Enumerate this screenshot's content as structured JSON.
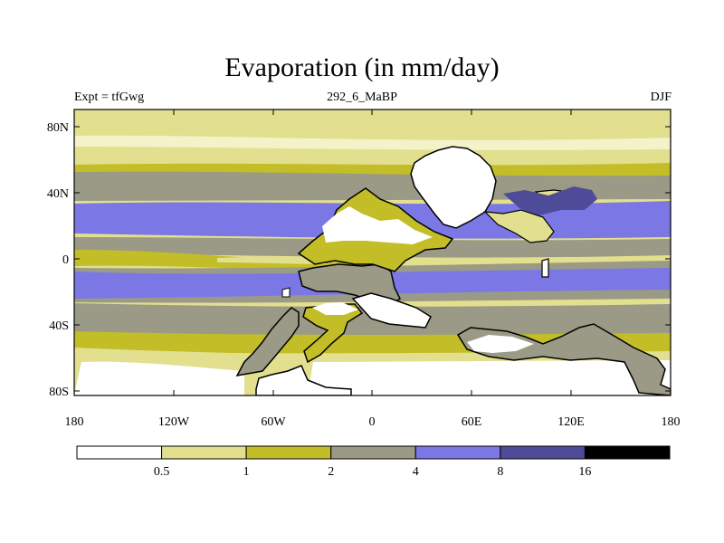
{
  "title": "Evaporation (in mm/day)",
  "subtitle_left": "Expt = tfGwg",
  "subtitle_center": "292_6_MaBP",
  "subtitle_right": "DJF",
  "lat_ticks": [
    "80N",
    "40N",
    "0",
    "40S",
    "80S"
  ],
  "lon_ticks": [
    "180",
    "120W",
    "60W",
    "0",
    "60E",
    "120E",
    "180"
  ],
  "colorbar": {
    "colors": [
      "#ffffff",
      "#e2df8e",
      "#c3bd27",
      "#9a9a86",
      "#7b78e6",
      "#4e4c98",
      "#000000"
    ],
    "labels": [
      "0.5",
      "1",
      "2",
      "4",
      "8",
      "16"
    ]
  }
}
